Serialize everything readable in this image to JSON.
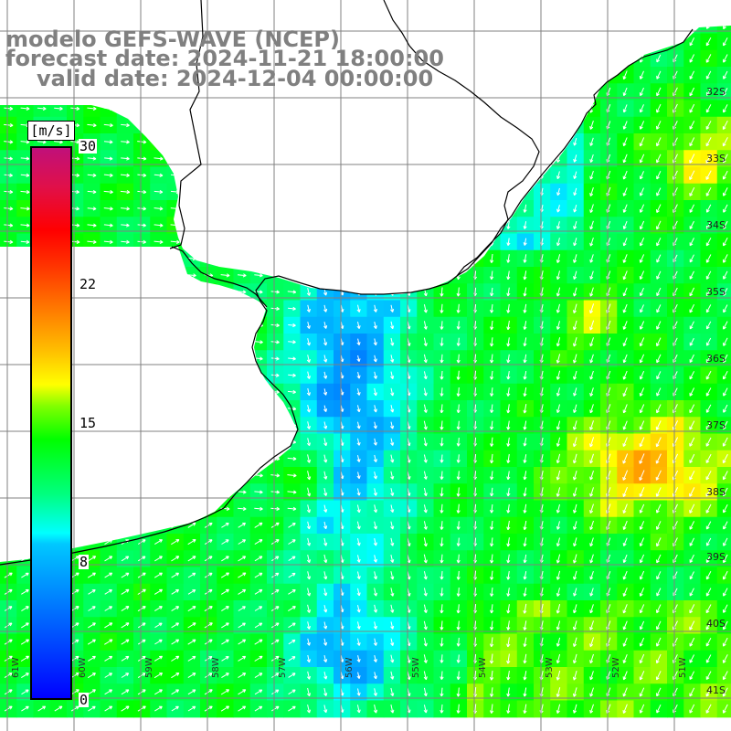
{
  "header": {
    "model": "modelo GEFS-WAVE (NCEP)",
    "forecast": "forecast date: 2024-11-21 18:00:00",
    "valid": "valid date: 2024-12-04 00:00:00"
  },
  "colorbar": {
    "unit": "[m/s]",
    "ticks": [
      "30",
      "22",
      "15",
      "8",
      "0"
    ],
    "tick_values": [
      30,
      22,
      15,
      8,
      0
    ],
    "range": [
      0,
      30
    ]
  },
  "map": {
    "lat_labels": [
      "32S",
      "33S",
      "34S",
      "35S",
      "36S",
      "37S",
      "38S",
      "39S",
      "40S",
      "41S"
    ],
    "lon_labels": [
      "61W",
      "60W",
      "59W",
      "58W",
      "57W",
      "56W",
      "55W",
      "54W",
      "53W",
      "52W",
      "51W"
    ],
    "colors": {
      "land": "#ffffff",
      "grid": "#808080",
      "coast": "#000000",
      "arrows": "#ffffff"
    }
  }
}
